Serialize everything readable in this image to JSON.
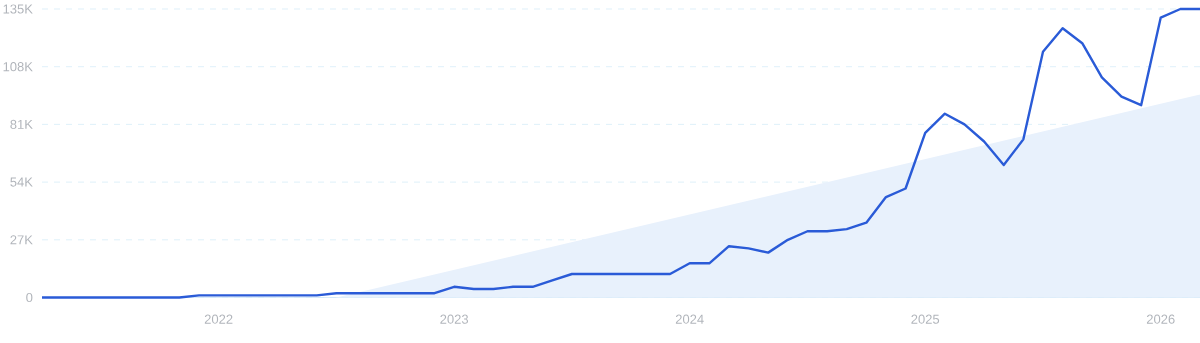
{
  "chart_data": {
    "type": "line",
    "x": [
      "2021-04",
      "2021-05",
      "2021-06",
      "2021-07",
      "2021-08",
      "2021-09",
      "2021-10",
      "2021-11",
      "2021-12",
      "2022-01",
      "2022-02",
      "2022-03",
      "2022-04",
      "2022-05",
      "2022-06",
      "2022-07",
      "2022-08",
      "2022-09",
      "2022-10",
      "2022-11",
      "2022-12",
      "2023-01",
      "2023-02",
      "2023-03",
      "2023-04",
      "2023-05",
      "2023-06",
      "2023-07",
      "2023-08",
      "2023-09",
      "2023-10",
      "2023-11",
      "2023-12",
      "2024-01",
      "2024-02",
      "2024-03",
      "2024-04",
      "2024-05",
      "2024-06",
      "2024-07",
      "2024-08",
      "2024-09",
      "2024-10",
      "2024-11",
      "2024-12",
      "2025-01",
      "2025-02",
      "2025-03",
      "2025-04",
      "2025-05",
      "2025-06",
      "2025-07",
      "2025-08",
      "2025-09",
      "2025-10",
      "2025-11",
      "2025-12",
      "2026-01",
      "2026-02",
      "2026-03"
    ],
    "series": [
      {
        "type": "area",
        "color": "#e8f1fc",
        "x": [
          "2022-07",
          "2026-03"
        ],
        "values": [
          0,
          95
        ]
      },
      {
        "color": "#2a5bd7",
        "values": [
          0,
          0,
          0,
          0,
          0,
          0,
          0,
          0,
          1,
          1,
          1,
          1,
          1,
          1,
          1,
          2,
          2,
          2,
          2,
          2,
          2,
          5,
          4,
          4,
          5,
          5,
          8,
          11,
          11,
          11,
          11,
          11,
          11,
          16,
          16,
          24,
          23,
          21,
          27,
          31,
          31,
          32,
          35,
          47,
          51,
          77,
          86,
          81,
          73,
          62,
          74,
          115,
          126,
          119,
          103,
          94,
          90,
          131,
          135,
          135
        ]
      }
    ],
    "xlim": [
      "2021-04",
      "2026-03"
    ],
    "xticks": [
      {
        "value": "2022-01",
        "label": "2022"
      },
      {
        "value": "2023-01",
        "label": "2023"
      },
      {
        "value": "2024-01",
        "label": "2024"
      },
      {
        "value": "2025-01",
        "label": "2025"
      },
      {
        "value": "2026-01",
        "label": "2026"
      }
    ],
    "ylim": [
      0,
      135
    ],
    "yticks": [
      0,
      {
        "value": 27,
        "label": "27K"
      },
      {
        "value": 54,
        "label": "54K"
      },
      {
        "value": 81,
        "label": "81K"
      },
      {
        "value": 108,
        "label": "108K"
      },
      {
        "value": 135,
        "label": "135K"
      }
    ],
    "grid": "y"
  }
}
